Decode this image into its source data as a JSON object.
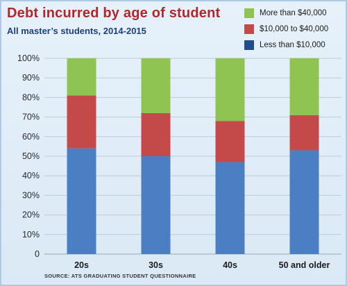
{
  "title": "Debt incurred by age of student",
  "subtitle": "All master’s students, 2014-2015",
  "source": "SOURCE: ATS GRADUATING STUDENT QUESTIONNAIRE",
  "legend": [
    {
      "label": "More than $40,000",
      "color": "#8fc352"
    },
    {
      "label": "$10,000 to $40,000",
      "color": "#c44a4a"
    },
    {
      "label": "Less than $10,000",
      "color": "#1f4e8c"
    }
  ],
  "chart_data": {
    "type": "bar",
    "stacked": true,
    "categories": [
      "20s",
      "30s",
      "40s",
      "50 and older"
    ],
    "series": [
      {
        "name": "Less than $10,000",
        "color": "#4a7fc4",
        "values": [
          54,
          50,
          47,
          53
        ]
      },
      {
        "name": "$10,000 to $40,000",
        "color": "#c44a4a",
        "values": [
          27,
          22,
          21,
          18
        ]
      },
      {
        "name": "More than $40,000",
        "color": "#8fc352",
        "values": [
          19,
          28,
          32,
          29
        ]
      }
    ],
    "yticks": [
      "0",
      "10%",
      "20%",
      "30%",
      "40%",
      "50%",
      "60%",
      "70%",
      "80%",
      "90%",
      "100%"
    ],
    "ylim": [
      0,
      100
    ],
    "grid": true
  }
}
